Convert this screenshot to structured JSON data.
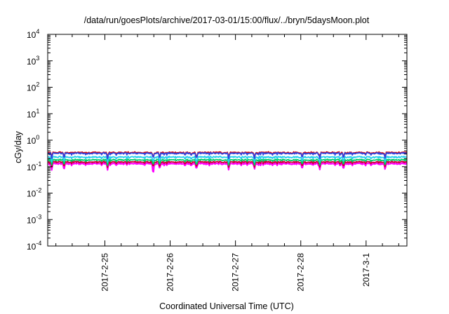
{
  "chart_data": {
    "type": "line",
    "title": "/data/run/goesPlots/archive/2017-03-01/15:00/flux/../bryn/5daysMoon.plot",
    "xlabel": "Coordinated Universal Time (UTC)",
    "ylabel": "cGy/day",
    "yscale": "log",
    "ylim": [
      0.0001,
      10000
    ],
    "yticks": [
      {
        "value": 0.0001,
        "base": "10",
        "exp": "-4"
      },
      {
        "value": 0.001,
        "base": "10",
        "exp": "-3"
      },
      {
        "value": 0.01,
        "base": "10",
        "exp": "-2"
      },
      {
        "value": 0.1,
        "base": "10",
        "exp": "-1"
      },
      {
        "value": 1,
        "base": "10",
        "exp": "0"
      },
      {
        "value": 10,
        "base": "10",
        "exp": "1"
      },
      {
        "value": 100,
        "base": "10",
        "exp": "2"
      },
      {
        "value": 1000,
        "base": "10",
        "exp": "3"
      },
      {
        "value": 10000,
        "base": "10",
        "exp": "4"
      }
    ],
    "xlim": [
      "2017-02-24 03:00",
      "2017-03-01 15:00"
    ],
    "xticks": [
      {
        "value": "2017-02-25 00:00",
        "label": "2017-2-25"
      },
      {
        "value": "2017-02-26 00:00",
        "label": "2017-2-26"
      },
      {
        "value": "2017-02-27 00:00",
        "label": "2017-2-27"
      },
      {
        "value": "2017-02-28 00:00",
        "label": "2017-2-28"
      },
      {
        "value": "2017-03-01 00:00",
        "label": "2017-3-1"
      }
    ],
    "grid": false,
    "legend": "none",
    "series": [
      {
        "color": "#ff00ff",
        "base": 0.13,
        "dips": [
          {
            "at": "2017-02-24 04:30",
            "to": 0.07
          },
          {
            "at": "2017-02-24 09:00",
            "to": 0.07
          },
          {
            "at": "2017-02-25 01:00",
            "to": 0.075
          },
          {
            "at": "2017-02-25 17:45",
            "to": 0.04
          },
          {
            "at": "2017-02-25 20:10",
            "to": 0.08
          },
          {
            "at": "2017-02-26 09:40",
            "to": 0.08
          },
          {
            "at": "2017-02-26 21:30",
            "to": 0.075
          },
          {
            "at": "2017-02-27 07:00",
            "to": 0.08
          },
          {
            "at": "2017-02-28 00:30",
            "to": 0.075
          },
          {
            "at": "2017-02-28 07:00",
            "to": 0.075
          },
          {
            "at": "2017-02-28 15:40",
            "to": 0.075
          },
          {
            "at": "2017-03-01 07:00",
            "to": 0.075
          }
        ]
      },
      {
        "color": "#cc0033",
        "base": 0.15,
        "dips": []
      },
      {
        "color": "#00cc66",
        "base": 0.18,
        "dips": []
      },
      {
        "color": "#22ccee",
        "base": 0.23,
        "dips": []
      },
      {
        "color": "#dd0000",
        "base": 0.34,
        "dips": []
      },
      {
        "color": "#3344dd",
        "base": 0.32,
        "dips": []
      }
    ]
  }
}
